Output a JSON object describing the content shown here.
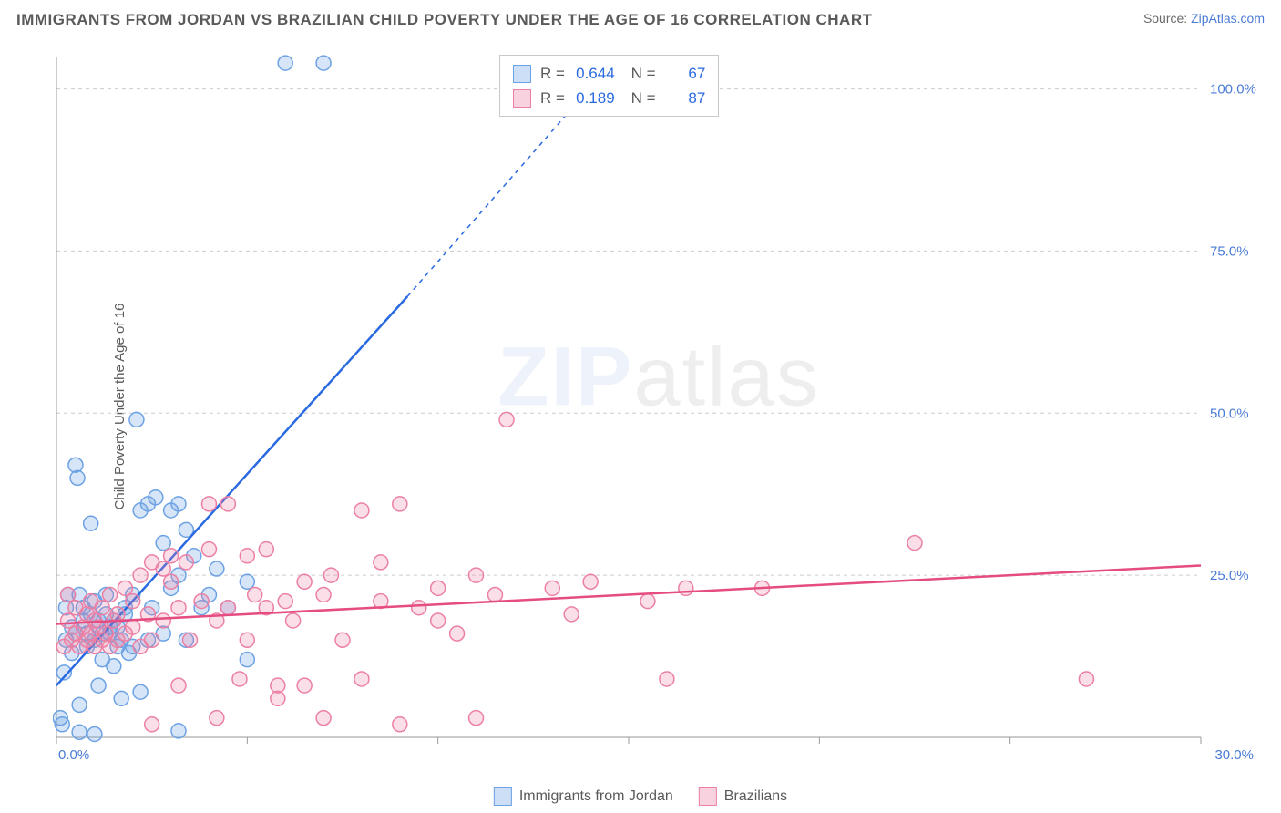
{
  "header": {
    "title": "IMMIGRANTS FROM JORDAN VS BRAZILIAN CHILD POVERTY UNDER THE AGE OF 16 CORRELATION CHART",
    "source_prefix": "Source: ",
    "source_link": "ZipAtlas.com"
  },
  "watermark": {
    "zip": "ZIP",
    "atlas": "atlas"
  },
  "chart": {
    "type": "scatter",
    "xlim": [
      0,
      30
    ],
    "ylim": [
      0,
      105
    ],
    "x_ticks": [
      0,
      5,
      10,
      15,
      20,
      25,
      30
    ],
    "x_tick_labels": [
      "0.0%",
      "",
      "",
      "",
      "",
      "",
      "30.0%"
    ],
    "y_ticks": [
      25,
      50,
      75,
      100
    ],
    "y_tick_labels": [
      "25.0%",
      "50.0%",
      "75.0%",
      "100.0%"
    ],
    "y_axis_label": "Child Poverty Under the Age of 16",
    "grid_color": "#cccccc",
    "axis_color": "#9a9a9a",
    "background": "#ffffff",
    "marker_radius": 8,
    "marker_stroke_width": 1.5,
    "line_width": 2.5,
    "dash_pattern": "5 5",
    "series": [
      {
        "name": "Immigrants from Jordan",
        "fill": "rgba(108,162,228,0.28)",
        "stroke": "#6ca2e4",
        "line_color": "#2a6ae0",
        "R": "0.644",
        "N": "67",
        "points": [
          [
            0.1,
            3
          ],
          [
            0.15,
            2
          ],
          [
            0.2,
            10
          ],
          [
            0.25,
            15
          ],
          [
            0.25,
            20
          ],
          [
            0.3,
            22
          ],
          [
            0.4,
            13
          ],
          [
            0.4,
            17
          ],
          [
            0.5,
            16
          ],
          [
            0.5,
            42
          ],
          [
            0.55,
            40
          ],
          [
            0.6,
            22
          ],
          [
            0.6,
            5
          ],
          [
            0.7,
            18
          ],
          [
            0.7,
            20
          ],
          [
            0.8,
            14
          ],
          [
            0.8,
            16
          ],
          [
            0.9,
            19
          ],
          [
            0.9,
            33
          ],
          [
            1.0,
            21
          ],
          [
            1.0,
            15
          ],
          [
            1.1,
            18
          ],
          [
            1.1,
            8
          ],
          [
            1.2,
            16
          ],
          [
            1.2,
            12
          ],
          [
            1.3,
            22
          ],
          [
            1.3,
            19
          ],
          [
            1.4,
            16
          ],
          [
            1.4,
            17
          ],
          [
            1.5,
            18
          ],
          [
            1.5,
            11
          ],
          [
            1.6,
            14
          ],
          [
            1.6,
            17
          ],
          [
            1.7,
            15
          ],
          [
            1.7,
            6
          ],
          [
            1.8,
            19
          ],
          [
            1.8,
            20
          ],
          [
            1.9,
            13
          ],
          [
            2.0,
            22
          ],
          [
            2.0,
            14
          ],
          [
            2.1,
            49
          ],
          [
            2.2,
            35
          ],
          [
            2.2,
            7
          ],
          [
            2.4,
            36
          ],
          [
            2.4,
            15
          ],
          [
            2.5,
            20
          ],
          [
            2.6,
            37
          ],
          [
            2.8,
            16
          ],
          [
            2.8,
            30
          ],
          [
            3.0,
            23
          ],
          [
            3.0,
            35
          ],
          [
            3.2,
            25
          ],
          [
            3.2,
            36
          ],
          [
            3.2,
            1
          ],
          [
            3.4,
            32
          ],
          [
            3.4,
            15
          ],
          [
            3.6,
            28
          ],
          [
            3.8,
            20
          ],
          [
            4.0,
            22
          ],
          [
            4.2,
            26
          ],
          [
            4.5,
            20
          ],
          [
            5.0,
            24
          ],
          [
            5.0,
            12
          ],
          [
            6.0,
            104
          ],
          [
            7.0,
            104
          ],
          [
            1.0,
            0.5
          ],
          [
            0.6,
            0.8
          ]
        ],
        "trend": {
          "x1": 0,
          "y1": 8,
          "x2": 9.2,
          "y2": 68,
          "ext_x2": 14.7,
          "ext_y2": 105
        }
      },
      {
        "name": "Brazilians",
        "fill": "rgba(236,128,164,0.25)",
        "stroke": "#ec80a4",
        "line_color": "#e54c82",
        "R": "0.189",
        "N": "87",
        "points": [
          [
            0.2,
            14
          ],
          [
            0.3,
            18
          ],
          [
            0.3,
            22
          ],
          [
            0.4,
            15
          ],
          [
            0.5,
            16
          ],
          [
            0.5,
            20
          ],
          [
            0.6,
            14
          ],
          [
            0.7,
            17
          ],
          [
            0.8,
            15
          ],
          [
            0.8,
            19
          ],
          [
            0.9,
            16
          ],
          [
            0.9,
            21
          ],
          [
            1.0,
            18
          ],
          [
            1.0,
            14
          ],
          [
            1.1,
            17
          ],
          [
            1.2,
            20
          ],
          [
            1.2,
            15
          ],
          [
            1.3,
            16
          ],
          [
            1.4,
            22
          ],
          [
            1.4,
            14
          ],
          [
            1.5,
            18
          ],
          [
            1.6,
            19
          ],
          [
            1.6,
            15
          ],
          [
            1.8,
            23
          ],
          [
            1.8,
            16
          ],
          [
            2.0,
            21
          ],
          [
            2.0,
            17
          ],
          [
            2.2,
            25
          ],
          [
            2.2,
            14
          ],
          [
            2.4,
            19
          ],
          [
            2.5,
            27
          ],
          [
            2.5,
            15
          ],
          [
            2.8,
            26
          ],
          [
            2.8,
            18
          ],
          [
            3.0,
            24
          ],
          [
            3.0,
            28
          ],
          [
            3.2,
            20
          ],
          [
            3.2,
            8
          ],
          [
            3.4,
            27
          ],
          [
            3.5,
            15
          ],
          [
            3.8,
            21
          ],
          [
            4.0,
            29
          ],
          [
            4.0,
            36
          ],
          [
            4.2,
            18
          ],
          [
            4.2,
            3
          ],
          [
            4.5,
            20
          ],
          [
            4.5,
            36
          ],
          [
            4.8,
            9
          ],
          [
            5.0,
            28
          ],
          [
            5.0,
            15
          ],
          [
            5.2,
            22
          ],
          [
            5.5,
            20
          ],
          [
            5.5,
            29
          ],
          [
            5.8,
            6
          ],
          [
            5.8,
            8
          ],
          [
            6.0,
            21
          ],
          [
            6.2,
            18
          ],
          [
            6.5,
            24
          ],
          [
            6.5,
            8
          ],
          [
            7.0,
            22
          ],
          [
            7.0,
            3
          ],
          [
            7.2,
            25
          ],
          [
            7.5,
            15
          ],
          [
            8.0,
            35
          ],
          [
            8.0,
            9
          ],
          [
            8.5,
            27
          ],
          [
            8.5,
            21
          ],
          [
            9.0,
            36
          ],
          [
            9.0,
            2
          ],
          [
            9.5,
            20
          ],
          [
            10.0,
            23
          ],
          [
            10.0,
            18
          ],
          [
            10.5,
            16
          ],
          [
            11.0,
            25
          ],
          [
            11.0,
            3
          ],
          [
            11.5,
            22
          ],
          [
            11.8,
            49
          ],
          [
            13.0,
            23
          ],
          [
            13.5,
            19
          ],
          [
            14.0,
            24
          ],
          [
            15.5,
            21
          ],
          [
            16.0,
            9
          ],
          [
            16.5,
            23
          ],
          [
            18.5,
            23
          ],
          [
            22.5,
            30
          ],
          [
            27.0,
            9
          ],
          [
            2.5,
            2
          ]
        ],
        "trend": {
          "x1": 0,
          "y1": 17.5,
          "x2": 30,
          "y2": 26.5
        }
      }
    ]
  },
  "stats_box": {
    "rows": [
      {
        "sw_fill": "rgba(108,162,228,0.35)",
        "sw_stroke": "#6ca2e4",
        "R_label": "R =",
        "R": "0.644",
        "N_label": "N =",
        "N": "67"
      },
      {
        "sw_fill": "rgba(236,128,164,0.35)",
        "sw_stroke": "#ec80a4",
        "R_label": "R =",
        "R": "0.189",
        "N_label": "N =",
        "N": "87"
      }
    ]
  },
  "bottom_legend": [
    {
      "sw_fill": "rgba(108,162,228,0.35)",
      "sw_stroke": "#6ca2e4",
      "label": "Immigrants from Jordan"
    },
    {
      "sw_fill": "rgba(236,128,164,0.35)",
      "sw_stroke": "#ec80a4",
      "label": "Brazilians"
    }
  ]
}
